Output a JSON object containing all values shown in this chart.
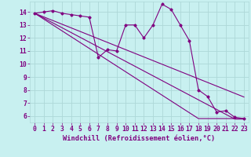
{
  "background_color": "#c8f0f0",
  "grid_color": "#add8d8",
  "line_color": "#800080",
  "marker_color": "#800080",
  "xlabel": "Windchill (Refroidissement éolien,°C)",
  "xlabel_fontsize": 6.2,
  "tick_fontsize": 5.8,
  "xlim": [
    -0.5,
    23.5
  ],
  "ylim": [
    5.5,
    14.8
  ],
  "yticks": [
    6,
    7,
    8,
    9,
    10,
    11,
    12,
    13,
    14
  ],
  "xticks": [
    0,
    1,
    2,
    3,
    4,
    5,
    6,
    7,
    8,
    9,
    10,
    11,
    12,
    13,
    14,
    15,
    16,
    17,
    18,
    19,
    20,
    21,
    22,
    23
  ],
  "main_series": [
    13.9,
    14.0,
    14.1,
    13.9,
    13.8,
    13.7,
    13.6,
    10.5,
    11.1,
    11.0,
    13.0,
    13.0,
    12.0,
    13.0,
    14.6,
    14.2,
    13.0,
    11.8,
    8.0,
    7.5,
    6.3,
    6.4,
    5.9,
    5.8
  ],
  "trend_lines": [
    [
      13.9,
      13.62,
      13.34,
      13.06,
      12.78,
      12.5,
      12.22,
      11.94,
      11.66,
      11.38,
      11.1,
      10.82,
      10.54,
      10.26,
      9.98,
      9.7,
      9.42,
      9.14,
      8.86,
      8.58,
      8.3,
      8.02,
      7.74,
      7.46
    ],
    [
      13.9,
      13.53,
      13.16,
      12.79,
      12.42,
      12.05,
      11.68,
      11.31,
      10.94,
      10.57,
      10.2,
      9.83,
      9.46,
      9.09,
      8.72,
      8.35,
      7.98,
      7.61,
      7.24,
      6.87,
      6.5,
      6.13,
      5.76,
      5.76
    ],
    [
      13.9,
      13.45,
      13.0,
      12.55,
      12.1,
      11.65,
      11.2,
      10.75,
      10.3,
      9.85,
      9.4,
      8.95,
      8.5,
      8.05,
      7.6,
      7.15,
      6.7,
      6.25,
      5.8,
      5.8,
      5.8,
      5.8,
      5.8,
      5.8
    ]
  ]
}
